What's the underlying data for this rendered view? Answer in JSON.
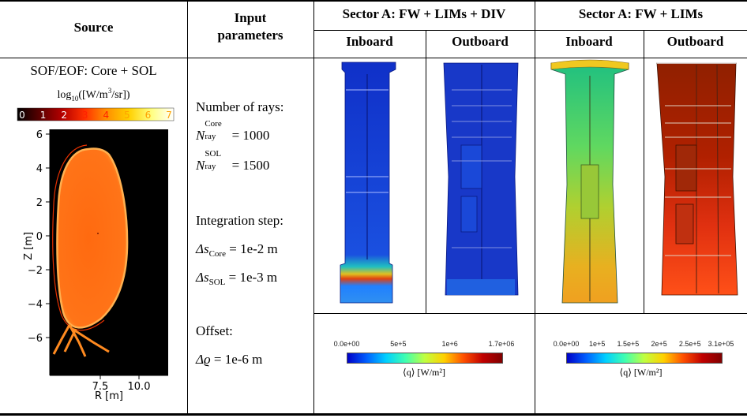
{
  "headers": {
    "source": "Source",
    "input_line1": "Input",
    "input_line2": "parameters",
    "sector_div": "Sector A: FW + LIMs + DIV",
    "sector_lims": "Sector A: FW + LIMs",
    "inboard": "Inboard",
    "outboard": "Outboard"
  },
  "source_panel": {
    "title": "SOF/EOF: Core + SOL",
    "units": "log10([W/m3/sr])",
    "units_base": "log",
    "units_sub": "10",
    "units_open": "([W/m",
    "units_sup": "3",
    "units_close": "/sr])",
    "colorbar_ticks": [
      "0",
      "1",
      "2",
      "3",
      "4",
      "5",
      "6",
      "7"
    ],
    "y_ticks": [
      "6",
      "4",
      "2",
      "0",
      "−2",
      "−4",
      "−6"
    ],
    "x_ticks": [
      "7.5",
      "10.0"
    ],
    "ylabel": "Z [m]",
    "xlabel": "R [m]"
  },
  "params": {
    "rays_label": "Number of rays:",
    "n_core_sym": "N",
    "n_core_sub": "ray",
    "n_core_sup": "Core",
    "n_core_val": "= 1000",
    "n_sol_sup": "SOL",
    "n_sol_val": "= 1500",
    "step_label": "Integration step:",
    "ds_sym": "Δs",
    "ds_core_sub": "Core",
    "ds_core_val": "= 1e-2 m",
    "ds_sol_sub": "SOL",
    "ds_sol_val": "= 1e-3 m",
    "offset_label": "Offset:",
    "offset_sym": "Δϱ",
    "offset_val": "= 1e-6 m"
  },
  "colorbar_div": {
    "ticks": [
      "0.0e+00",
      "5e+5",
      "1e+6",
      "1.7e+06"
    ],
    "label": "⟨q⟩  [W/m²]"
  },
  "colorbar_lims": {
    "ticks": [
      "0.0e+00",
      "1e+5",
      "1.5e+5",
      "2e+5",
      "2.5e+5",
      "3.1e+05"
    ],
    "label": "⟨q⟩  [W/m²]"
  },
  "colors": {
    "jet": [
      "#0000c8",
      "#0060ff",
      "#00d0ff",
      "#40ffb0",
      "#c0ff40",
      "#ffd000",
      "#ff5000",
      "#c00000",
      "#800000"
    ],
    "hot": [
      "#000000",
      "#5a0000",
      "#b40000",
      "#ff3000",
      "#ff9000",
      "#ffd000",
      "#ffff80",
      "#ffffff"
    ]
  }
}
